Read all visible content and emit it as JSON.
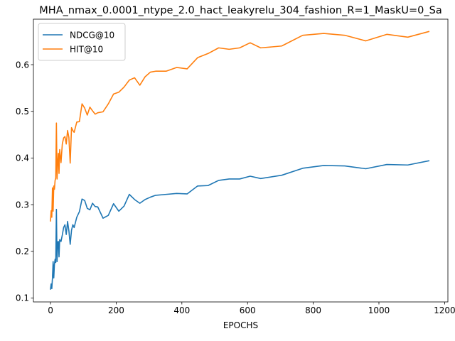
{
  "chart_data": {
    "type": "line",
    "title": "MHA_nmax_0.0001_ntype_2.0_hact_leakyrelu_304_fashion_R=1_MaskU=0_Sa",
    "xlabel": "EPOCHS",
    "ylabel": "",
    "xlim": [
      -52,
      1210
    ],
    "ylim": [
      0.0915,
      0.6975
    ],
    "xticks": [
      0,
      200,
      400,
      600,
      800,
      1000,
      1200
    ],
    "yticks": [
      0.1,
      0.2,
      0.3,
      0.4,
      0.5,
      0.6
    ],
    "grid": false,
    "legend": "top-left",
    "series": [
      {
        "name": "NDCG@10",
        "color": "#1f77b4",
        "points": [
          [
            0,
            0.119
          ],
          [
            2,
            0.13
          ],
          [
            4,
            0.12
          ],
          [
            6,
            0.143
          ],
          [
            8,
            0.178
          ],
          [
            10,
            0.143
          ],
          [
            12,
            0.172
          ],
          [
            14,
            0.183
          ],
          [
            16,
            0.176
          ],
          [
            18,
            0.29
          ],
          [
            20,
            0.178
          ],
          [
            22,
            0.22
          ],
          [
            24,
            0.221
          ],
          [
            26,
            0.188
          ],
          [
            28,
            0.225
          ],
          [
            32,
            0.221
          ],
          [
            36,
            0.235
          ],
          [
            40,
            0.251
          ],
          [
            44,
            0.257
          ],
          [
            48,
            0.236
          ],
          [
            52,
            0.264
          ],
          [
            56,
            0.244
          ],
          [
            60,
            0.215
          ],
          [
            64,
            0.245
          ],
          [
            68,
            0.257
          ],
          [
            72,
            0.251
          ],
          [
            76,
            0.262
          ],
          [
            80,
            0.273
          ],
          [
            88,
            0.285
          ],
          [
            96,
            0.312
          ],
          [
            104,
            0.309
          ],
          [
            112,
            0.292
          ],
          [
            120,
            0.289
          ],
          [
            128,
            0.303
          ],
          [
            136,
            0.296
          ],
          [
            144,
            0.295
          ],
          [
            160,
            0.271
          ],
          [
            176,
            0.277
          ],
          [
            192,
            0.302
          ],
          [
            208,
            0.286
          ],
          [
            224,
            0.297
          ],
          [
            240,
            0.322
          ],
          [
            256,
            0.311
          ],
          [
            272,
            0.303
          ],
          [
            288,
            0.311
          ],
          [
            304,
            0.316
          ],
          [
            320,
            0.32
          ],
          [
            352,
            0.322
          ],
          [
            384,
            0.324
          ],
          [
            416,
            0.323
          ],
          [
            448,
            0.34
          ],
          [
            480,
            0.341
          ],
          [
            512,
            0.352
          ],
          [
            544,
            0.355
          ],
          [
            576,
            0.355
          ],
          [
            608,
            0.361
          ],
          [
            640,
            0.356
          ],
          [
            704,
            0.363
          ],
          [
            768,
            0.378
          ],
          [
            832,
            0.384
          ],
          [
            896,
            0.383
          ],
          [
            960,
            0.377
          ],
          [
            1024,
            0.386
          ],
          [
            1088,
            0.385
          ],
          [
            1152,
            0.394
          ]
        ]
      },
      {
        "name": "HIT@10",
        "color": "#ff7f0e",
        "points": [
          [
            0,
            0.265
          ],
          [
            2,
            0.287
          ],
          [
            4,
            0.273
          ],
          [
            6,
            0.336
          ],
          [
            8,
            0.286
          ],
          [
            10,
            0.34
          ],
          [
            12,
            0.333
          ],
          [
            14,
            0.352
          ],
          [
            16,
            0.357
          ],
          [
            18,
            0.475
          ],
          [
            20,
            0.355
          ],
          [
            22,
            0.39
          ],
          [
            24,
            0.41
          ],
          [
            26,
            0.367
          ],
          [
            28,
            0.418
          ],
          [
            32,
            0.39
          ],
          [
            36,
            0.43
          ],
          [
            40,
            0.443
          ],
          [
            44,
            0.446
          ],
          [
            48,
            0.43
          ],
          [
            52,
            0.459
          ],
          [
            56,
            0.444
          ],
          [
            60,
            0.389
          ],
          [
            64,
            0.465
          ],
          [
            68,
            0.459
          ],
          [
            72,
            0.455
          ],
          [
            76,
            0.466
          ],
          [
            80,
            0.477
          ],
          [
            88,
            0.478
          ],
          [
            96,
            0.516
          ],
          [
            104,
            0.507
          ],
          [
            112,
            0.492
          ],
          [
            120,
            0.509
          ],
          [
            128,
            0.501
          ],
          [
            136,
            0.494
          ],
          [
            144,
            0.497
          ],
          [
            160,
            0.499
          ],
          [
            176,
            0.516
          ],
          [
            192,
            0.537
          ],
          [
            208,
            0.541
          ],
          [
            224,
            0.552
          ],
          [
            240,
            0.567
          ],
          [
            256,
            0.572
          ],
          [
            272,
            0.556
          ],
          [
            288,
            0.574
          ],
          [
            304,
            0.584
          ],
          [
            320,
            0.586
          ],
          [
            352,
            0.586
          ],
          [
            384,
            0.594
          ],
          [
            416,
            0.591
          ],
          [
            448,
            0.615
          ],
          [
            480,
            0.624
          ],
          [
            512,
            0.636
          ],
          [
            544,
            0.633
          ],
          [
            576,
            0.636
          ],
          [
            608,
            0.647
          ],
          [
            640,
            0.636
          ],
          [
            704,
            0.64
          ],
          [
            768,
            0.663
          ],
          [
            832,
            0.667
          ],
          [
            896,
            0.663
          ],
          [
            960,
            0.651
          ],
          [
            1024,
            0.665
          ],
          [
            1088,
            0.659
          ],
          [
            1152,
            0.671
          ]
        ]
      }
    ]
  }
}
